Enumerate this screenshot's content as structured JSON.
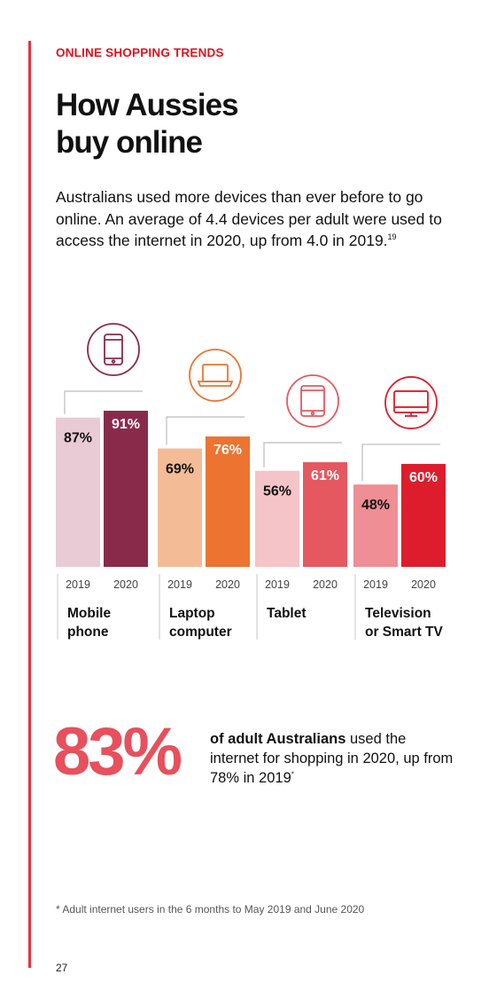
{
  "eyebrow": "ONLINE SHOPPING TRENDS",
  "title_lines": [
    "How Aussies",
    "buy online"
  ],
  "intro": {
    "text": "Australians used more devices than ever before to go online. An average of 4.4 devices per adult were used to access the internet in 2020, up from 4.0 in 2019.",
    "ref": "19"
  },
  "chart_data": {
    "type": "bar",
    "title": "",
    "categories": [
      "Mobile phone",
      "Laptop computer",
      "Tablet",
      "Television or Smart TV"
    ],
    "category_lines": [
      [
        "Mobile",
        "phone"
      ],
      [
        "Laptop",
        "computer"
      ],
      [
        "Tablet"
      ],
      [
        "Television",
        "or Smart TV"
      ]
    ],
    "icons": [
      "mobile-phone-icon",
      "laptop-icon",
      "tablet-icon",
      "television-icon"
    ],
    "series": [
      {
        "name": "2019",
        "values": [
          87,
          69,
          56,
          48
        ]
      },
      {
        "name": "2020",
        "values": [
          91,
          76,
          61,
          60
        ]
      }
    ],
    "value_labels": [
      [
        "87%",
        "91%"
      ],
      [
        "69%",
        "76%"
      ],
      [
        "56%",
        "61%"
      ],
      [
        "48%",
        "60%"
      ]
    ],
    "year_labels": [
      "2019",
      "2020"
    ],
    "colors": [
      [
        "#e9cbd5",
        "#8a2a4a"
      ],
      [
        "#f4bc96",
        "#ec7430"
      ],
      [
        "#f4c4c8",
        "#e65860"
      ],
      [
        "#ef8e94",
        "#dd1d2c"
      ]
    ],
    "icon_colors": [
      "#8a2a4a",
      "#ec7430",
      "#e65860",
      "#dd1d2c"
    ],
    "label_text_colors": [
      [
        "#111111",
        "#ffffff"
      ],
      [
        "#111111",
        "#ffffff"
      ],
      [
        "#111111",
        "#ffffff"
      ],
      [
        "#111111",
        "#ffffff"
      ]
    ],
    "grid": false,
    "legend": "none"
  },
  "stat": {
    "big": "83%",
    "bold": "of adult Australians",
    "rest": " used the internet for shopping in 2020, up from 78% in 2019",
    "mark": "*"
  },
  "footnote": "* Adult internet users in the 6 months to May 2019 and June 2020",
  "page_number": "27"
}
